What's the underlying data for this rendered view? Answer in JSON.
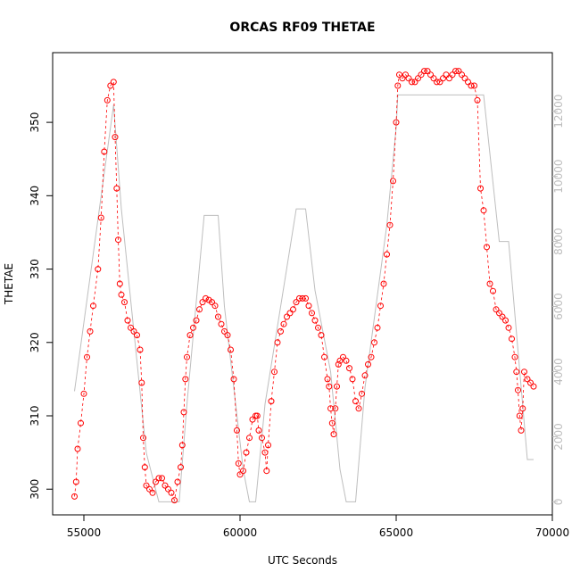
{
  "chart_data": {
    "type": "line",
    "title": "ORCAS RF09 THETAE",
    "xlabel": "UTC Seconds",
    "ylabel": "THETAE",
    "xlim": [
      54000,
      70000
    ],
    "ylim": [
      296.5,
      359.5
    ],
    "y2lim": [
      -400,
      13800
    ],
    "x_ticks": [
      55000,
      60000,
      65000,
      70000
    ],
    "y_ticks": [
      300,
      310,
      320,
      330,
      340,
      350
    ],
    "y2_ticks": [
      0,
      2000,
      4000,
      6000,
      8000,
      10000,
      12000
    ],
    "grid": false,
    "colors": {
      "thetae": "#ff0000",
      "altitude": "#bebebe"
    },
    "series": [
      {
        "marker": "open-circle",
        "color": "#ff0000",
        "points": [
          [
            54700,
            299.0
          ],
          [
            54750,
            301.0
          ],
          [
            54800,
            305.5
          ],
          [
            54900,
            309.0
          ],
          [
            55000,
            313.0
          ],
          [
            55100,
            318.0
          ],
          [
            55200,
            321.5
          ],
          [
            55300,
            325.0
          ],
          [
            55450,
            330.0
          ],
          [
            55550,
            337.0
          ],
          [
            55650,
            346.0
          ],
          [
            55750,
            353.0
          ],
          [
            55850,
            355.0
          ],
          [
            55950,
            355.5
          ],
          [
            56000,
            348.0
          ],
          [
            56050,
            341.0
          ],
          [
            56100,
            334.0
          ],
          [
            56150,
            328.0
          ],
          [
            56200,
            326.5
          ],
          [
            56300,
            325.5
          ],
          [
            56400,
            323.0
          ],
          [
            56500,
            322.0
          ],
          [
            56600,
            321.5
          ],
          [
            56700,
            321.0
          ],
          [
            56800,
            319.0
          ],
          [
            56850,
            314.5
          ],
          [
            56900,
            307.0
          ],
          [
            56950,
            303.0
          ],
          [
            57000,
            300.5
          ],
          [
            57100,
            300.0
          ],
          [
            57200,
            299.5
          ],
          [
            57300,
            301.0
          ],
          [
            57400,
            301.5
          ],
          [
            57500,
            301.5
          ],
          [
            57600,
            300.5
          ],
          [
            57700,
            300.0
          ],
          [
            57800,
            299.5
          ],
          [
            57900,
            298.5
          ],
          [
            58000,
            301.0
          ],
          [
            58100,
            303.0
          ],
          [
            58150,
            306.0
          ],
          [
            58200,
            310.5
          ],
          [
            58250,
            315.0
          ],
          [
            58300,
            318.0
          ],
          [
            58400,
            321.0
          ],
          [
            58500,
            322.0
          ],
          [
            58600,
            323.0
          ],
          [
            58700,
            324.5
          ],
          [
            58800,
            325.5
          ],
          [
            58900,
            326.0
          ],
          [
            59000,
            325.8
          ],
          [
            59100,
            325.5
          ],
          [
            59200,
            325.0
          ],
          [
            59300,
            323.5
          ],
          [
            59400,
            322.5
          ],
          [
            59500,
            321.5
          ],
          [
            59600,
            321.0
          ],
          [
            59700,
            319.0
          ],
          [
            59800,
            315.0
          ],
          [
            59900,
            308.0
          ],
          [
            59950,
            303.5
          ],
          [
            60000,
            302.0
          ],
          [
            60100,
            302.5
          ],
          [
            60200,
            305.0
          ],
          [
            60300,
            307.0
          ],
          [
            60400,
            309.5
          ],
          [
            60500,
            310.0
          ],
          [
            60550,
            310.0
          ],
          [
            60600,
            308.0
          ],
          [
            60700,
            307.0
          ],
          [
            60800,
            305.0
          ],
          [
            60850,
            302.5
          ],
          [
            60900,
            306.0
          ],
          [
            61000,
            312.0
          ],
          [
            61100,
            316.0
          ],
          [
            61200,
            320.0
          ],
          [
            61300,
            321.5
          ],
          [
            61400,
            322.5
          ],
          [
            61500,
            323.5
          ],
          [
            61600,
            324.0
          ],
          [
            61700,
            324.5
          ],
          [
            61800,
            325.5
          ],
          [
            61900,
            326.0
          ],
          [
            62000,
            326.0
          ],
          [
            62100,
            326.0
          ],
          [
            62200,
            325.0
          ],
          [
            62300,
            324.0
          ],
          [
            62400,
            323.0
          ],
          [
            62500,
            322.0
          ],
          [
            62600,
            321.0
          ],
          [
            62700,
            318.0
          ],
          [
            62800,
            315.0
          ],
          [
            62850,
            314.0
          ],
          [
            62900,
            311.0
          ],
          [
            62950,
            309.0
          ],
          [
            63000,
            307.5
          ],
          [
            63050,
            311.0
          ],
          [
            63100,
            314.0
          ],
          [
            63150,
            317.0
          ],
          [
            63200,
            317.5
          ],
          [
            63300,
            318.0
          ],
          [
            63400,
            317.5
          ],
          [
            63500,
            316.5
          ],
          [
            63600,
            315.0
          ],
          [
            63700,
            312.0
          ],
          [
            63800,
            311.0
          ],
          [
            63900,
            313.0
          ],
          [
            64000,
            315.5
          ],
          [
            64100,
            317.0
          ],
          [
            64200,
            318.0
          ],
          [
            64300,
            320.0
          ],
          [
            64400,
            322.0
          ],
          [
            64500,
            325.0
          ],
          [
            64600,
            328.0
          ],
          [
            64700,
            332.0
          ],
          [
            64800,
            336.0
          ],
          [
            64900,
            342.0
          ],
          [
            65000,
            350.0
          ],
          [
            65050,
            355.0
          ],
          [
            65100,
            356.5
          ],
          [
            65200,
            356.0
          ],
          [
            65300,
            356.5
          ],
          [
            65400,
            356.0
          ],
          [
            65500,
            355.5
          ],
          [
            65600,
            355.5
          ],
          [
            65700,
            356.0
          ],
          [
            65800,
            356.5
          ],
          [
            65900,
            357.0
          ],
          [
            66000,
            357.0
          ],
          [
            66100,
            356.5
          ],
          [
            66200,
            356.0
          ],
          [
            66300,
            355.5
          ],
          [
            66400,
            355.5
          ],
          [
            66500,
            356.0
          ],
          [
            66600,
            356.5
          ],
          [
            66700,
            356.0
          ],
          [
            66800,
            356.5
          ],
          [
            66900,
            357.0
          ],
          [
            67000,
            357.0
          ],
          [
            67100,
            356.5
          ],
          [
            67200,
            356.0
          ],
          [
            67300,
            355.5
          ],
          [
            67400,
            355.0
          ],
          [
            67500,
            355.0
          ],
          [
            67600,
            353.0
          ],
          [
            67700,
            341.0
          ],
          [
            67800,
            338.0
          ],
          [
            67900,
            333.0
          ],
          [
            68000,
            328.0
          ],
          [
            68100,
            327.0
          ],
          [
            68200,
            324.5
          ],
          [
            68300,
            324.0
          ],
          [
            68400,
            323.5
          ],
          [
            68500,
            323.0
          ],
          [
            68600,
            322.0
          ],
          [
            68700,
            320.5
          ],
          [
            68800,
            318.0
          ],
          [
            68850,
            316.0
          ],
          [
            68900,
            313.5
          ],
          [
            68950,
            310.0
          ],
          [
            69000,
            308.0
          ],
          [
            69050,
            311.0
          ],
          [
            69100,
            316.0
          ],
          [
            69200,
            315.0
          ],
          [
            69300,
            314.5
          ],
          [
            69400,
            314.0
          ]
        ]
      },
      {
        "style": "line",
        "color": "#bebebe",
        "axis": "right",
        "points": [
          [
            54700,
            3400
          ],
          [
            55950,
            12200
          ],
          [
            56200,
            9000
          ],
          [
            57000,
            1500
          ],
          [
            57400,
            0
          ],
          [
            58050,
            0
          ],
          [
            58300,
            3000
          ],
          [
            58850,
            8800
          ],
          [
            59300,
            8800
          ],
          [
            59500,
            6000
          ],
          [
            60100,
            1000
          ],
          [
            60300,
            0
          ],
          [
            60500,
            0
          ],
          [
            60800,
            3000
          ],
          [
            61800,
            9000
          ],
          [
            62100,
            9000
          ],
          [
            62400,
            6500
          ],
          [
            62900,
            4000
          ],
          [
            63200,
            1000
          ],
          [
            63400,
            0
          ],
          [
            63700,
            0
          ],
          [
            64000,
            3500
          ],
          [
            64700,
            8500
          ],
          [
            65000,
            11500
          ],
          [
            65050,
            12500
          ],
          [
            67800,
            12500
          ],
          [
            68300,
            8000
          ],
          [
            68600,
            8000
          ],
          [
            69200,
            1300
          ],
          [
            69400,
            1300
          ]
        ]
      }
    ]
  }
}
